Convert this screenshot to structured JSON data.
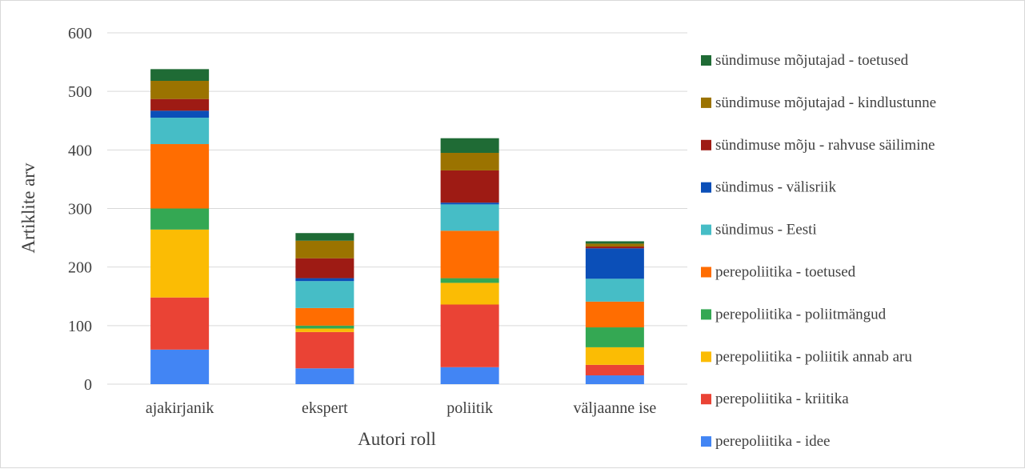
{
  "chart_data": {
    "type": "bar",
    "stacked": true,
    "title": "",
    "xlabel": "Autori roll",
    "ylabel": "Artiklite arv",
    "ylim": [
      0,
      600
    ],
    "yticks": [
      0,
      100,
      200,
      300,
      400,
      500,
      600
    ],
    "grid": true,
    "legend_position": "right",
    "categories": [
      "ajakirjanik",
      "ekspert",
      "poliitik",
      "väljaanne ise"
    ],
    "series": [
      {
        "name": "perepoliitika - idee",
        "color": "#4285f4",
        "values": [
          59,
          27,
          29,
          15
        ]
      },
      {
        "name": "perepoliitika - kriitika",
        "color": "#ea4335",
        "values": [
          89,
          62,
          107,
          18
        ]
      },
      {
        "name": "perepoliitika - poliitik annab aru",
        "color": "#fbbc04",
        "values": [
          116,
          6,
          37,
          30
        ]
      },
      {
        "name": "perepoliitika - poliitmängud",
        "color": "#34a853",
        "values": [
          36,
          5,
          8,
          34
        ]
      },
      {
        "name": "perepoliitika - toetused",
        "color": "#ff6d01",
        "values": [
          110,
          30,
          81,
          44
        ]
      },
      {
        "name": "sündimus - Eesti",
        "color": "#46bdc6",
        "values": [
          45,
          46,
          45,
          39
        ]
      },
      {
        "name": "sündimus - välisriik",
        "color": "#0b4fb8",
        "values": [
          12,
          5,
          3,
          52
        ]
      },
      {
        "name": "sündimuse mõju - rahvuse säilimine",
        "color": "#9e1b14",
        "values": [
          20,
          34,
          55,
          3
        ]
      },
      {
        "name": "sündimuse mõjutajad - kindlustunne",
        "color": "#9b7300",
        "values": [
          31,
          30,
          30,
          5
        ]
      },
      {
        "name": "sündimuse mõjutajad - toetused",
        "color": "#1f6b35",
        "values": [
          20,
          13,
          25,
          4
        ]
      }
    ]
  }
}
